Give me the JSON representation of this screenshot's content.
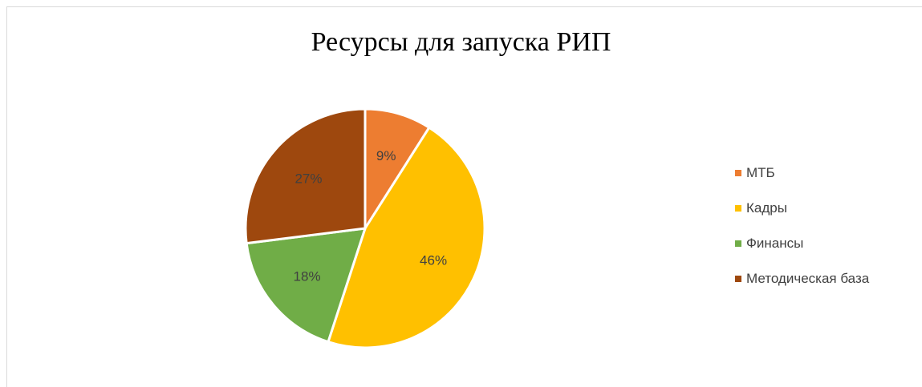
{
  "chart_data": {
    "type": "pie",
    "title": "Ресурсы для запуска РИП",
    "categories": [
      "МТБ",
      "Кадры",
      "Финансы",
      "Методическая база"
    ],
    "values": [
      9,
      46,
      18,
      27
    ],
    "labels": [
      "9%",
      "46%",
      "18%",
      "27%"
    ],
    "colors": [
      "#ED7D31",
      "#FFC000",
      "#70AD47",
      "#9E480E"
    ],
    "label_colors": [
      "#404040",
      "#404040",
      "#404040",
      "#404040"
    ],
    "legend": "right"
  }
}
